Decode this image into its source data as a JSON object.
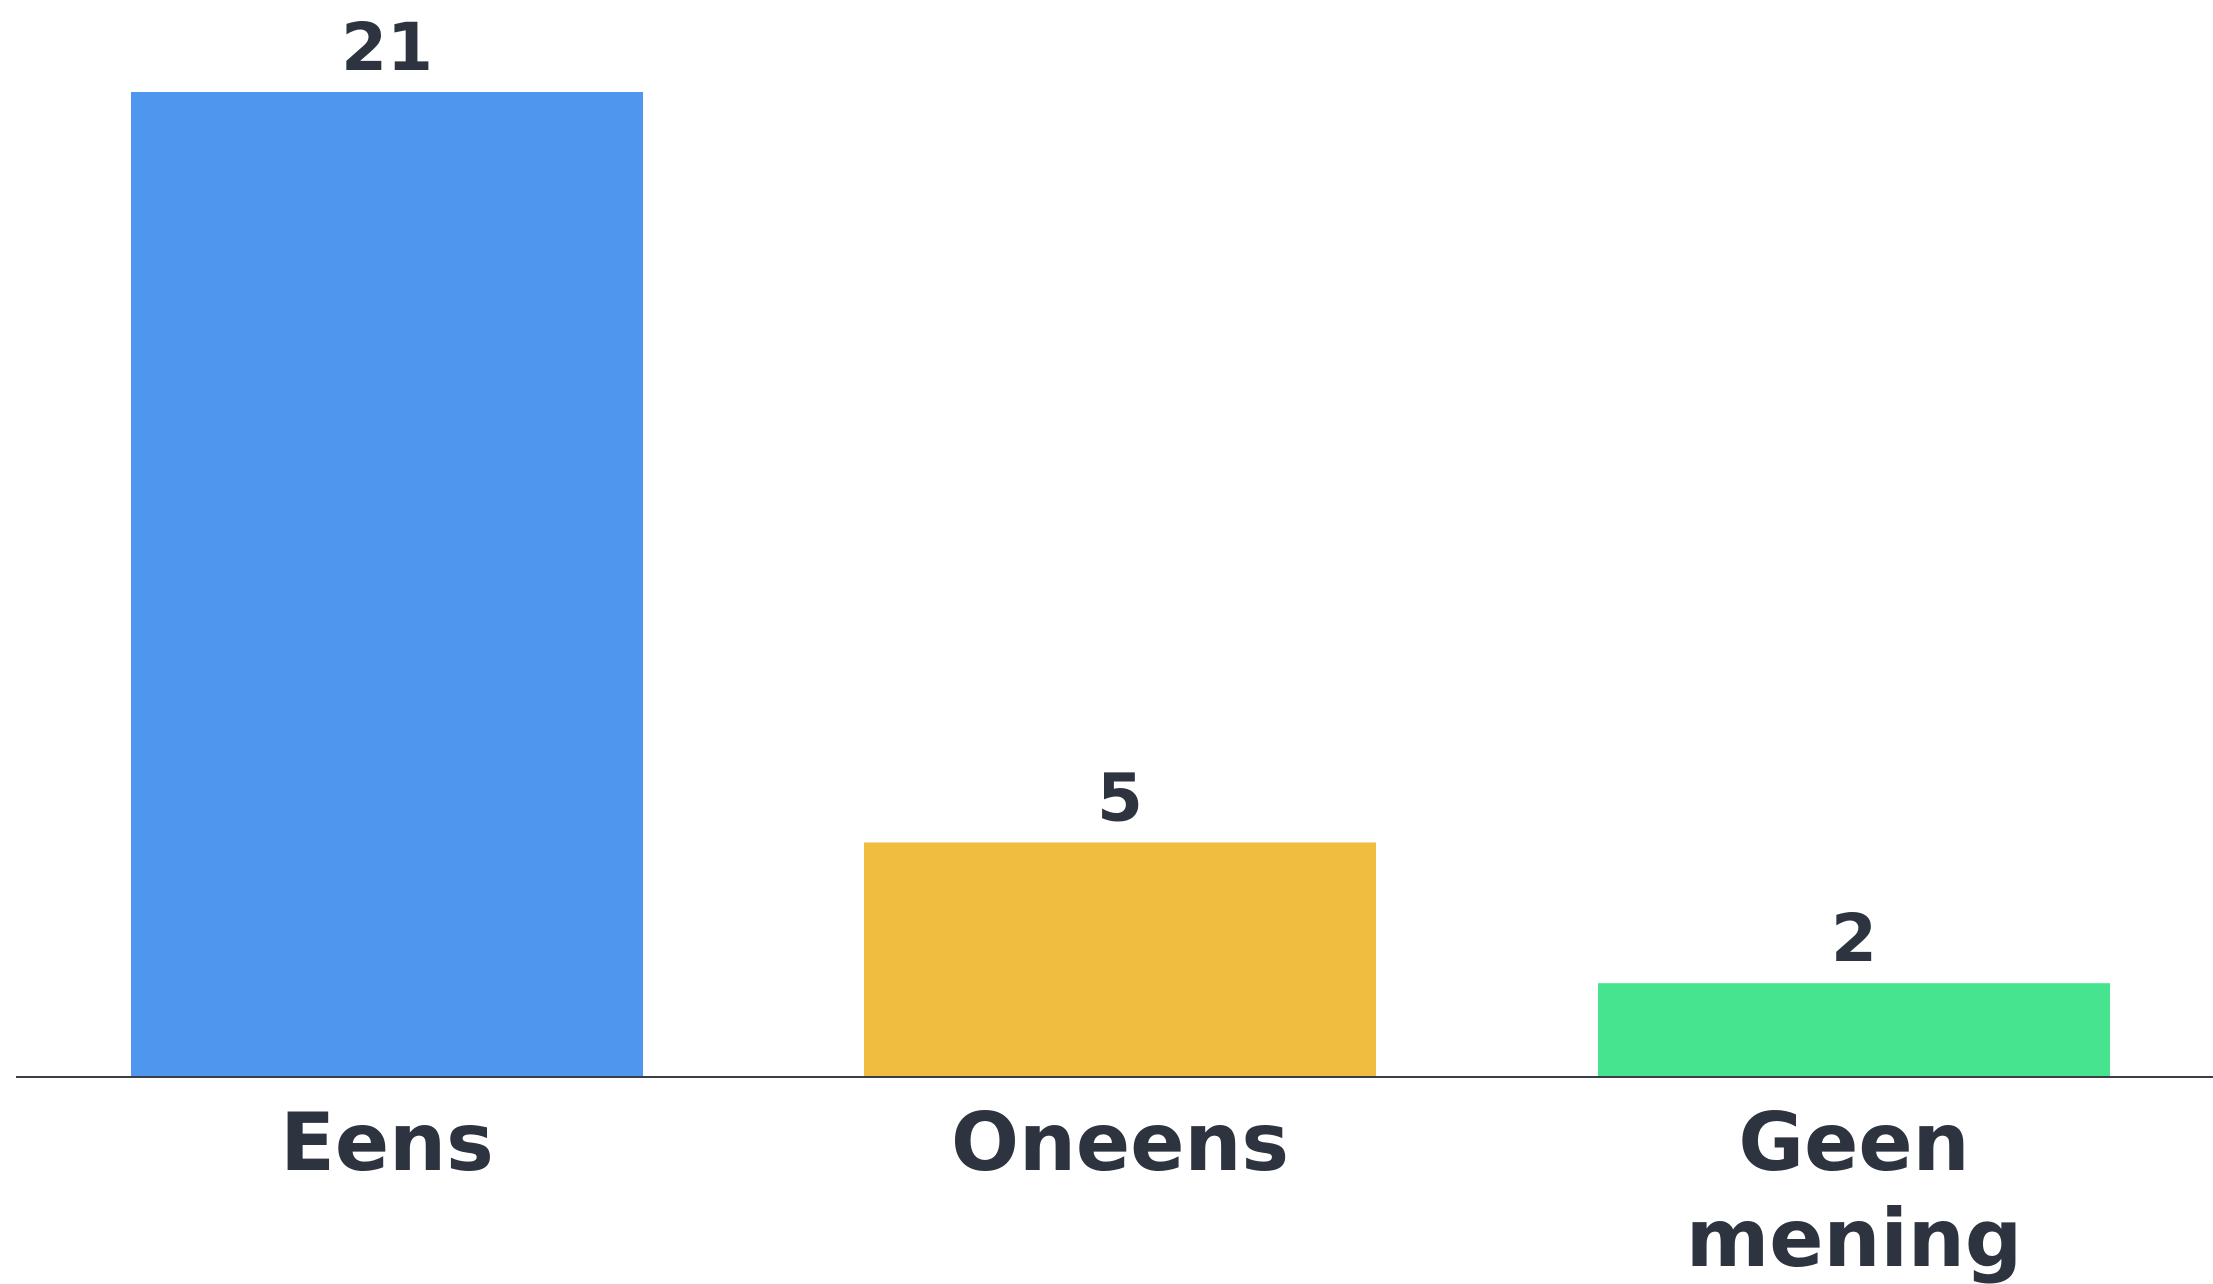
{
  "chart_data": {
    "type": "bar",
    "categories": [
      "Eens",
      "Oneens",
      "Geen mening"
    ],
    "values": [
      21,
      5,
      2
    ],
    "colors": [
      "#4f97ee",
      "#f0bd41",
      "#47e48f"
    ],
    "ylim": [
      0,
      21
    ],
    "grid": false,
    "title": "",
    "xlabel": "",
    "ylabel": ""
  }
}
